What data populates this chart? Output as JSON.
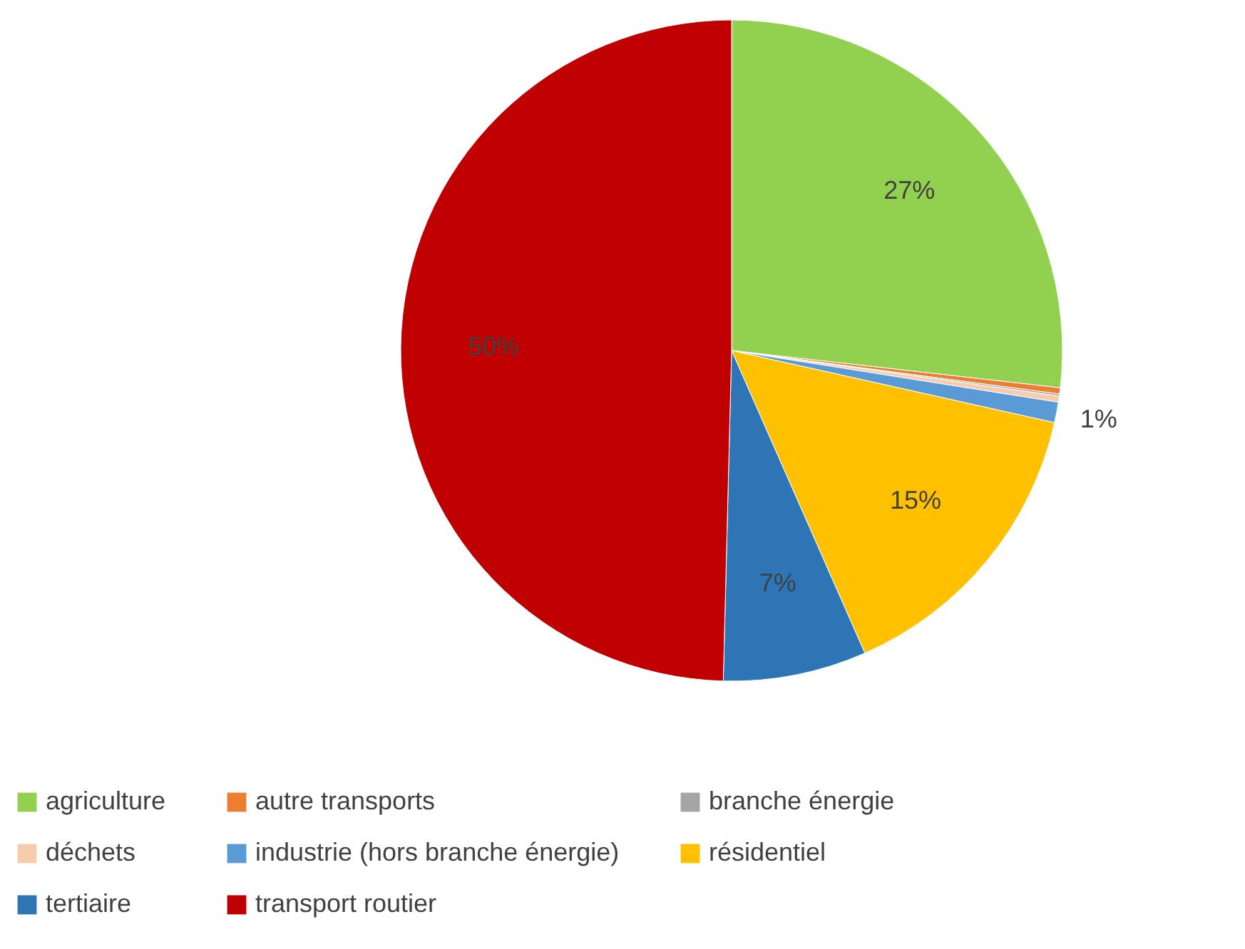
{
  "chart_data": {
    "type": "pie",
    "categories": [
      "agriculture",
      "autre transports",
      "branche énergie",
      "déchets",
      "industrie (hors branche énergie)",
      "résidentiel",
      "tertiaire",
      "transport routier"
    ],
    "values": [
      26.8,
      0.3,
      0.1,
      0.3,
      1,
      14.9,
      7,
      49.6
    ],
    "colors": [
      "#92d050",
      "#ed7d31",
      "#a5a5a5",
      "#f8cbad",
      "#5b9bd5",
      "#ffc000",
      "#2e75b6",
      "#c00000"
    ],
    "value_labels": [
      "27%",
      null,
      null,
      null,
      "1%",
      "15%",
      "7%",
      "50%"
    ],
    "legend": "bottom"
  }
}
